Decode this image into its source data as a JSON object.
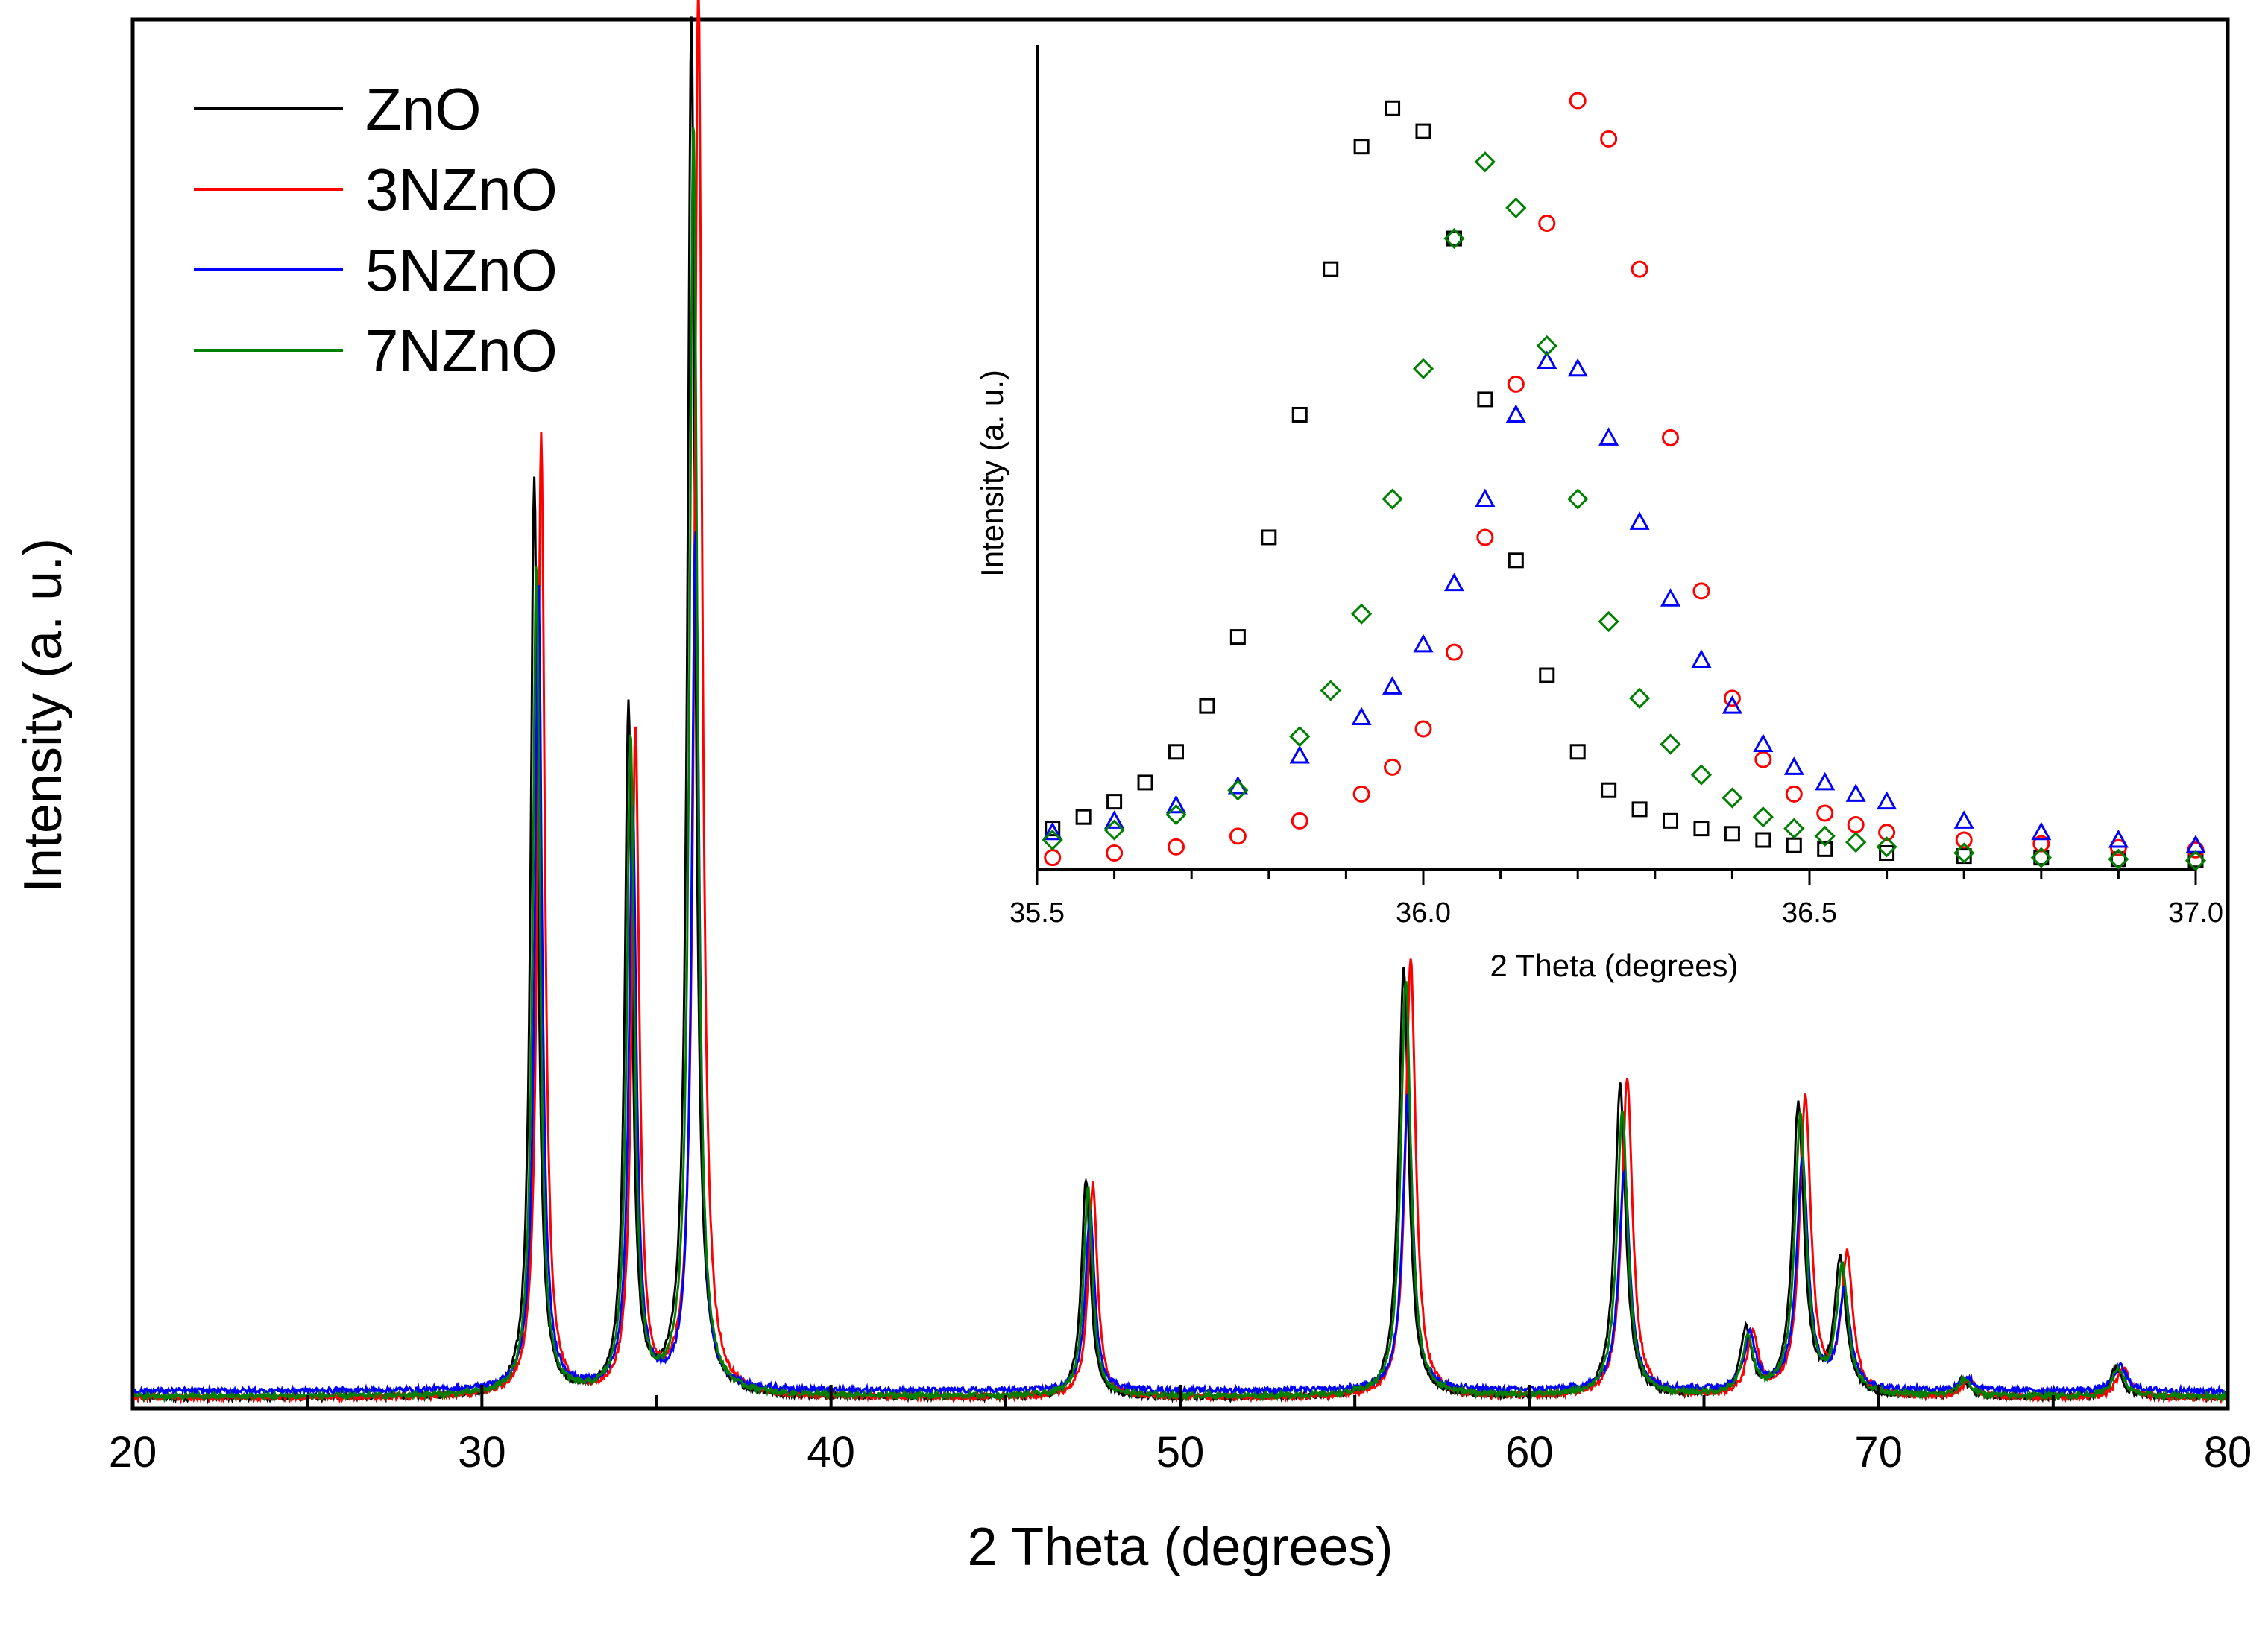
{
  "chart_data": [
    {
      "type": "line",
      "xlabel": "2 Theta (degrees)",
      "ylabel": "Intensity (a. u.)",
      "xlim": [
        20,
        80
      ],
      "ylim": [
        0,
        1.0
      ],
      "x_ticks": [
        "20",
        "30",
        "40",
        "50",
        "60",
        "70",
        "80"
      ],
      "x_minor_step": 5,
      "y_ticks_shown": false,
      "legend": {
        "placement": "top-left",
        "entries": [
          "ZnO",
          "3NZnO",
          "5NZnO",
          "7NZnO"
        ]
      },
      "colors": {
        "ZnO": "#000000",
        "3NZnO": "#ff0000",
        "5NZnO": "#0000ff",
        "7NZnO": "#008000"
      },
      "series": [
        {
          "name": "ZnO",
          "color": "#000000",
          "shift": 0.0,
          "baseline": 0.005,
          "peaks": [
            [
              31.5,
              0.664
            ],
            [
              34.2,
              0.497
            ],
            [
              36.0,
              0.995
            ],
            [
              47.3,
              0.157
            ],
            [
              56.4,
              0.31
            ],
            [
              62.6,
              0.225
            ],
            [
              66.2,
              0.047
            ],
            [
              67.7,
              0.209
            ],
            [
              68.9,
              0.096
            ],
            [
              72.4,
              0.013
            ],
            [
              76.8,
              0.022
            ]
          ]
        },
        {
          "name": "3NZnO",
          "color": "#ff0000",
          "shift": 0.2,
          "baseline": 0.005,
          "peaks": [
            [
              31.5,
              0.695
            ],
            [
              34.2,
              0.478
            ],
            [
              36.0,
              1.02
            ],
            [
              47.3,
              0.155
            ],
            [
              56.4,
              0.318
            ],
            [
              62.6,
              0.231
            ],
            [
              66.2,
              0.045
            ],
            [
              67.7,
              0.215
            ],
            [
              68.9,
              0.1
            ],
            [
              72.4,
              0.013
            ],
            [
              76.8,
              0.022
            ]
          ]
        },
        {
          "name": "5NZnO",
          "color": "#0000ff",
          "shift": 0.12,
          "baseline": 0.01,
          "peaks": [
            [
              31.5,
              0.58
            ],
            [
              34.2,
              0.42
            ],
            [
              36.0,
              0.62
            ],
            [
              47.3,
              0.13
            ],
            [
              56.4,
              0.215
            ],
            [
              62.6,
              0.16
            ],
            [
              66.2,
              0.04
            ],
            [
              67.7,
              0.165
            ],
            [
              68.9,
              0.07
            ],
            [
              72.4,
              0.01
            ],
            [
              76.8,
              0.018
            ]
          ]
        },
        {
          "name": "7NZnO",
          "color": "#008000",
          "shift": 0.06,
          "baseline": 0.006,
          "peaks": [
            [
              31.5,
              0.6
            ],
            [
              34.2,
              0.475
            ],
            [
              36.0,
              0.92
            ],
            [
              47.3,
              0.15
            ],
            [
              56.4,
              0.3
            ],
            [
              62.6,
              0.205
            ],
            [
              66.2,
              0.04
            ],
            [
              67.7,
              0.2
            ],
            [
              68.9,
              0.09
            ],
            [
              72.4,
              0.012
            ],
            [
              76.8,
              0.02
            ]
          ]
        }
      ]
    },
    {
      "type": "scatter",
      "xlabel": "2 Theta (degrees)",
      "ylabel": "Intensity (a. u.)",
      "xlim": [
        35.5,
        37.0
      ],
      "ylim": [
        0,
        1.0
      ],
      "x_ticks": [
        "35.5",
        "36.0",
        "36.5",
        "37.0"
      ],
      "x_minor_step": 0.1,
      "y_ticks_shown": false,
      "series": [
        {
          "name": "ZnO",
          "color": "#000000",
          "marker": "square",
          "x": [
            35.52,
            35.56,
            35.6,
            35.64,
            35.68,
            35.72,
            35.76,
            35.8,
            35.84,
            35.88,
            35.92,
            35.96,
            36.0,
            36.04,
            36.08,
            36.12,
            36.16,
            36.2,
            36.24,
            36.28,
            36.32,
            36.36,
            36.4,
            36.44,
            36.48,
            36.52,
            36.6,
            36.7,
            36.8,
            36.9,
            37.0
          ],
          "y": [
            0.05,
            0.065,
            0.085,
            0.11,
            0.15,
            0.21,
            0.3,
            0.43,
            0.59,
            0.78,
            0.94,
            0.99,
            0.96,
            0.82,
            0.61,
            0.4,
            0.25,
            0.15,
            0.1,
            0.075,
            0.06,
            0.05,
            0.043,
            0.035,
            0.028,
            0.023,
            0.018,
            0.014,
            0.012,
            0.01,
            0.009
          ]
        },
        {
          "name": "3NZnO",
          "color": "#ff0000",
          "marker": "circle",
          "x": [
            35.52,
            35.6,
            35.68,
            35.76,
            35.84,
            35.92,
            35.96,
            36.0,
            36.04,
            36.08,
            36.12,
            36.16,
            36.2,
            36.24,
            36.28,
            36.32,
            36.36,
            36.4,
            36.44,
            36.48,
            36.52,
            36.56,
            36.6,
            36.7,
            36.8,
            36.9,
            37.0
          ],
          "y": [
            0.012,
            0.018,
            0.026,
            0.04,
            0.06,
            0.095,
            0.13,
            0.18,
            0.28,
            0.43,
            0.63,
            0.84,
            1.0,
            0.95,
            0.78,
            0.56,
            0.36,
            0.22,
            0.14,
            0.095,
            0.07,
            0.055,
            0.045,
            0.035,
            0.03,
            0.025,
            0.022
          ]
        },
        {
          "name": "5NZnO",
          "color": "#0000ff",
          "marker": "triangle",
          "x": [
            35.52,
            35.6,
            35.68,
            35.76,
            35.84,
            35.92,
            35.96,
            36.0,
            36.04,
            36.08,
            36.12,
            36.16,
            36.2,
            36.24,
            36.28,
            36.32,
            36.36,
            36.4,
            36.44,
            36.48,
            36.52,
            36.56,
            36.6,
            36.7,
            36.8,
            36.9,
            37.0
          ],
          "y": [
            0.045,
            0.06,
            0.08,
            0.105,
            0.145,
            0.195,
            0.235,
            0.29,
            0.37,
            0.48,
            0.59,
            0.66,
            0.65,
            0.56,
            0.45,
            0.35,
            0.27,
            0.21,
            0.16,
            0.13,
            0.11,
            0.095,
            0.085,
            0.06,
            0.045,
            0.035,
            0.028
          ]
        },
        {
          "name": "7NZnO",
          "color": "#008000",
          "marker": "diamond",
          "x": [
            35.52,
            35.6,
            35.68,
            35.76,
            35.84,
            35.88,
            35.92,
            35.96,
            36.0,
            36.04,
            36.08,
            36.12,
            36.16,
            36.2,
            36.24,
            36.28,
            36.32,
            36.36,
            36.4,
            36.44,
            36.48,
            36.52,
            36.56,
            36.6,
            36.7,
            36.8,
            36.9,
            37.0
          ],
          "y": [
            0.035,
            0.048,
            0.068,
            0.1,
            0.17,
            0.23,
            0.33,
            0.48,
            0.65,
            0.82,
            0.92,
            0.86,
            0.68,
            0.48,
            0.32,
            0.22,
            0.16,
            0.12,
            0.09,
            0.065,
            0.05,
            0.04,
            0.032,
            0.026,
            0.018,
            0.012,
            0.01,
            0.008
          ]
        }
      ]
    }
  ]
}
